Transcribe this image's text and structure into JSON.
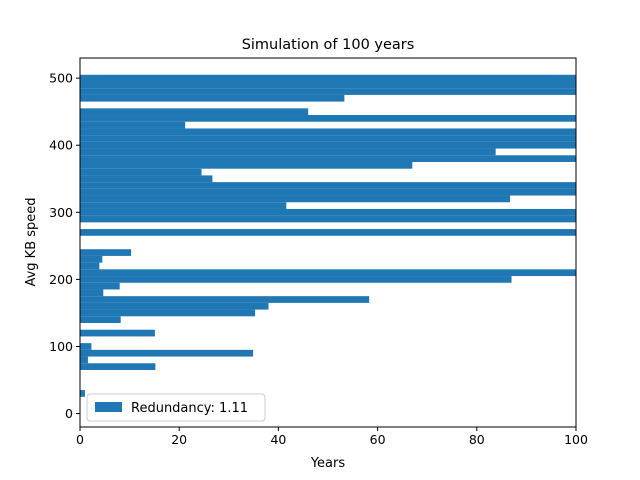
{
  "chart_data": {
    "type": "bar",
    "orientation": "horizontal",
    "title": "Simulation of 100 years",
    "xlabel": "Years",
    "ylabel": "Avg KB speed",
    "xlim": [
      0,
      100
    ],
    "ylim": [
      -20,
      530
    ],
    "xticks": [
      "0",
      "20",
      "40",
      "60",
      "80",
      "100"
    ],
    "yticks": [
      "0",
      "100",
      "200",
      "300",
      "400",
      "500"
    ],
    "grid": false,
    "legend_position": "lower-left",
    "bar_color": "#1f77b4",
    "series": [
      {
        "name": "Redundancy: 1.11",
        "y": [
          0,
          10,
          20,
          30,
          40,
          50,
          60,
          70,
          80,
          90,
          100,
          110,
          120,
          130,
          140,
          150,
          160,
          170,
          180,
          190,
          200,
          210,
          220,
          230,
          240,
          250,
          260,
          270,
          280,
          290,
          300,
          310,
          320,
          330,
          340,
          350,
          360,
          370,
          380,
          390,
          400,
          410,
          420,
          430,
          440,
          450,
          460,
          470,
          480,
          490,
          500
        ],
        "x": [
          0,
          0,
          0,
          1,
          0,
          0,
          0,
          15.2,
          1.6,
          34.9,
          2.3,
          0,
          15.1,
          0,
          8.2,
          35.3,
          38,
          58.3,
          4.7,
          8,
          87,
          100,
          3.9,
          4.5,
          10.3,
          0,
          0,
          100,
          0,
          100,
          100,
          41.6,
          86.7,
          100,
          100,
          26.7,
          24.5,
          67,
          100,
          83.8,
          100,
          100,
          100,
          21.2,
          100,
          46,
          0,
          53.3,
          100,
          100,
          100
        ]
      }
    ],
    "legend": [
      {
        "label": "Redundancy: 1.11",
        "color": "#1f77b4"
      }
    ]
  }
}
